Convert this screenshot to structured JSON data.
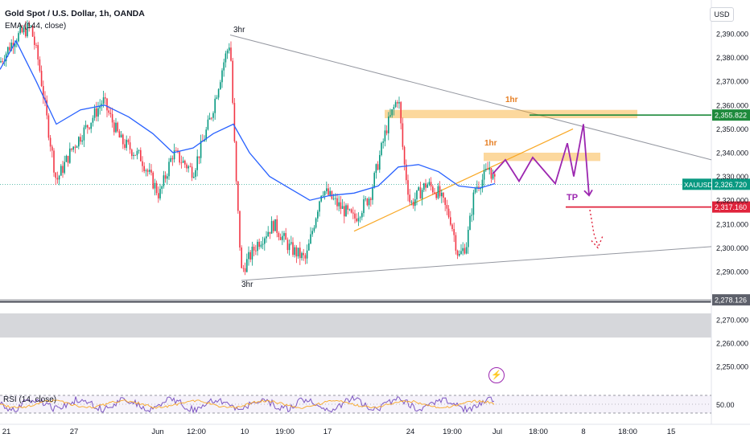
{
  "header": {
    "title": "Gold Spot / U.S. Dollar, 1h, OANDA",
    "indicator": "EMA (144, close)",
    "currency": "USD",
    "rsi_label": "RSI (14, close)"
  },
  "chart_data": {
    "type": "candlestick",
    "symbol": "XAUUSD",
    "yaxis": {
      "ticks": [
        2390,
        2380,
        2370,
        2360,
        2350,
        2340,
        2330,
        2320,
        2310,
        2300,
        2290,
        2270,
        2260,
        2250
      ],
      "tick_labels": [
        "2,390.000",
        "2,380.000",
        "2,370.000",
        "2,360.000",
        "2,350.000",
        "2,340.000",
        "2,330.000",
        "2,320.000",
        "2,310.000",
        "2,300.000",
        "2,290.000",
        "2,270.000",
        "2,260.000",
        "2,250.000"
      ]
    },
    "xaxis": {
      "tick_labels": [
        "21",
        "27",
        "Jun",
        "12:00",
        "10",
        "19:00",
        "17",
        "24",
        "19:00",
        "Jul",
        "18:00",
        "8",
        "18:00",
        "15"
      ]
    },
    "price_labels": [
      {
        "text": "2,355.822",
        "value": 2355.822,
        "color": "#1e8a3c"
      },
      {
        "text": "2,326.720",
        "value": 2326.72,
        "color": "#089981",
        "ticker": "XAUUSD"
      },
      {
        "text": "2,317.160",
        "value": 2317.16,
        "color": "#e0233c"
      },
      {
        "text": "2,278.126",
        "value": 2278.126,
        "color": "#5d606b"
      }
    ],
    "annotations": [
      {
        "text": "3hr",
        "near": "top-swing"
      },
      {
        "text": "3hr",
        "near": "bottom-swing"
      },
      {
        "text": "1hr",
        "color": "#e67e22"
      },
      {
        "text": "1hr",
        "color": "#e67e22"
      },
      {
        "text": "TP",
        "color": "#9c27b0"
      }
    ],
    "zones": [
      {
        "top": 2358,
        "bottom": 2354.5,
        "color": "#f9a825"
      },
      {
        "top": 2340,
        "bottom": 2336.5,
        "color": "#f9a825"
      }
    ],
    "levels": [
      {
        "value": 2355.822,
        "color": "#1e8a3c"
      },
      {
        "value": 2317.16,
        "color": "#e0233c"
      }
    ],
    "projection_path": [
      2331,
      2337,
      2328,
      2338,
      2327,
      2344,
      2330,
      2352,
      2322
    ],
    "rsi": {
      "level_label": "50.00",
      "value": 50
    }
  }
}
